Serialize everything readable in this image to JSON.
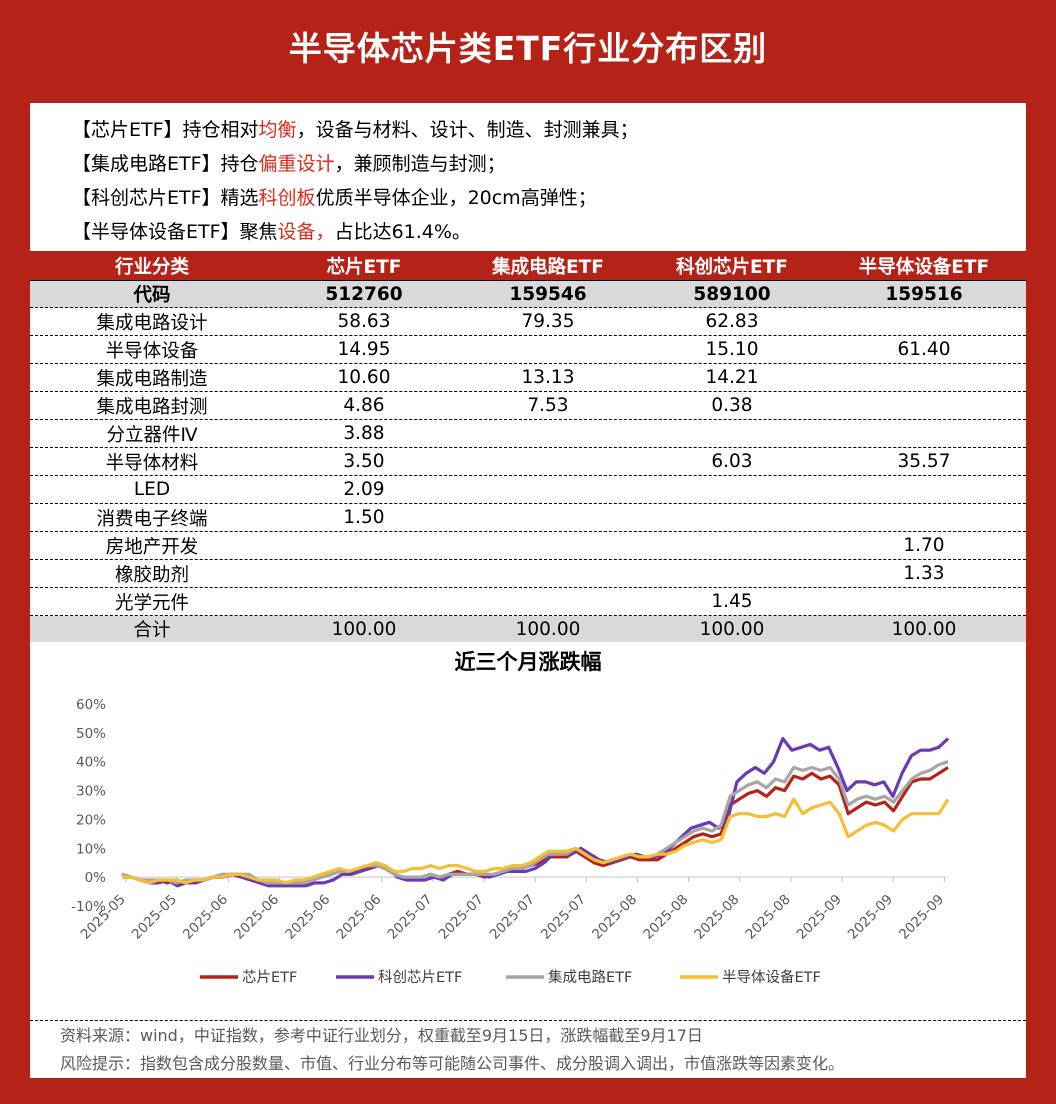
{
  "title": "半导体芯片类ETF行业分布区别",
  "intro": [
    {
      "a": "【芯片ETF】持仓相对",
      "hl": "均衡",
      "b": "，设备与材料、设计、制造、封测兼具；"
    },
    {
      "a": "【集成电路ETF】持仓",
      "hl": "偏重设计",
      "b": "，兼顾制造与封测；"
    },
    {
      "a": "【科创芯片ETF】精选",
      "hl": "科创板",
      "b": "优质半导体企业，20cm高弹性；"
    },
    {
      "a": "【半导体设备ETF】聚焦",
      "hl": "设备，",
      "b": "占比达61.4%。"
    }
  ],
  "table": {
    "headers": [
      "行业分类",
      "芯片ETF",
      "集成电路ETF",
      "科创芯片ETF",
      "半导体设备ETF"
    ],
    "code_row": [
      "代码",
      "512760",
      "159546",
      "589100",
      "159516"
    ],
    "rows": [
      [
        "集成电路设计",
        "58.63",
        "79.35",
        "62.83",
        ""
      ],
      [
        "半导体设备",
        "14.95",
        "",
        "15.10",
        "61.40"
      ],
      [
        "集成电路制造",
        "10.60",
        "13.13",
        "14.21",
        ""
      ],
      [
        "集成电路封测",
        "4.86",
        "7.53",
        "0.38",
        ""
      ],
      [
        "分立器件Ⅳ",
        "3.88",
        "",
        "",
        ""
      ],
      [
        "半导体材料",
        "3.50",
        "",
        "6.03",
        "35.57"
      ],
      [
        "LED",
        "2.09",
        "",
        "",
        ""
      ],
      [
        "消费电子终端",
        "1.50",
        "",
        "",
        ""
      ],
      [
        "房地产开发",
        "",
        "",
        "",
        "1.70"
      ],
      [
        "橡胶助剂",
        "",
        "",
        "",
        "1.33"
      ],
      [
        "光学元件",
        "",
        "",
        "1.45",
        ""
      ]
    ],
    "total_row": [
      "合计",
      "100.00",
      "100.00",
      "100.00",
      "100.00"
    ]
  },
  "footer": {
    "source": "资料来源：wind，中证指数，参考中证行业划分，权重截至9月15日，涨跌幅截至9月17日",
    "risk": "风险提示：指数包含成分股数量、市值、行业分布等可能随公司事件、成分股调入调出，市值涨跌等因素变化。"
  },
  "colors": {
    "brand_red": "#b52318",
    "highlight": "#e02a1b"
  },
  "chart_data": {
    "type": "line",
    "title": "近三个月涨跌幅",
    "ylim": [
      -10,
      60
    ],
    "yticks": [
      -10,
      0,
      10,
      20,
      30,
      40,
      50,
      60
    ],
    "y_format": "percent",
    "x_tick_labels": [
      "2025-05",
      "2025-05",
      "2025-06",
      "2025-06",
      "2025-06",
      "2025-06",
      "2025-07",
      "2025-07",
      "2025-07",
      "2025-07",
      "2025-08",
      "2025-08",
      "2025-08",
      "2025-08",
      "2025-09",
      "2025-09",
      "2025-09"
    ],
    "legend_position": "bottom",
    "series": [
      {
        "name": "芯片ETF",
        "color": "#b52318",
        "values": [
          0,
          0,
          -1,
          -2,
          -1,
          -2,
          -1,
          -2,
          -1,
          -1,
          0,
          0,
          1,
          1,
          0,
          -1,
          -2,
          -2,
          -2,
          -3,
          -2,
          -1,
          0,
          1,
          2,
          1,
          2,
          3,
          4,
          3,
          1,
          0,
          0,
          0,
          1,
          0,
          1,
          2,
          1,
          1,
          0,
          1,
          2,
          3,
          3,
          4,
          5,
          7,
          7,
          7,
          9,
          7,
          5,
          4,
          5,
          6,
          7,
          6,
          6,
          6,
          8,
          10,
          12,
          14,
          15,
          14,
          15,
          25,
          27,
          29,
          30,
          28,
          31,
          30,
          35,
          34,
          36,
          34,
          35,
          32,
          22,
          24,
          26,
          25,
          26,
          23,
          28,
          33,
          34,
          34,
          36,
          38
        ]
      },
      {
        "name": "科创芯片ETF",
        "color": "#6a3ab4",
        "values": [
          1,
          0,
          -1,
          -2,
          -2,
          -1,
          -3,
          -2,
          -2,
          -1,
          0,
          0,
          1,
          0,
          -1,
          -2,
          -3,
          -3,
          -3,
          -3,
          -3,
          -2,
          -2,
          -1,
          1,
          1,
          2,
          3,
          4,
          3,
          0,
          -1,
          -1,
          -1,
          0,
          -1,
          1,
          1,
          1,
          1,
          0,
          1,
          2,
          2,
          2,
          3,
          5,
          8,
          8,
          8,
          10,
          8,
          6,
          5,
          6,
          7,
          8,
          7,
          7,
          8,
          11,
          14,
          17,
          18,
          19,
          17,
          20,
          33,
          36,
          38,
          36,
          40,
          48,
          44,
          45,
          46,
          44,
          45,
          38,
          30,
          33,
          33,
          32,
          33,
          28,
          36,
          42,
          44,
          44,
          45,
          48
        ]
      },
      {
        "name": "集成电路ETF",
        "color": "#a6a6a6",
        "values": [
          1,
          0,
          -1,
          -1,
          -1,
          -1,
          -2,
          -1,
          -1,
          -1,
          0,
          1,
          1,
          1,
          1,
          -1,
          -2,
          -2,
          -2,
          -2,
          -2,
          -1,
          0,
          1,
          2,
          2,
          3,
          4,
          4,
          3,
          1,
          0,
          0,
          0,
          1,
          0,
          1,
          1,
          1,
          1,
          1,
          1,
          2,
          3,
          3,
          4,
          6,
          8,
          8,
          8,
          10,
          8,
          6,
          5,
          6,
          7,
          8,
          7,
          7,
          8,
          10,
          12,
          14,
          16,
          17,
          16,
          18,
          28,
          30,
          32,
          33,
          31,
          34,
          33,
          38,
          37,
          38,
          37,
          38,
          34,
          25,
          27,
          28,
          27,
          28,
          26,
          30,
          34,
          36,
          37,
          39,
          40
        ]
      },
      {
        "name": "半导体设备ETF",
        "color": "#f4bf35",
        "values": [
          0,
          0,
          -1,
          -2,
          -1,
          -1,
          -1,
          -2,
          -1,
          -1,
          0,
          0,
          1,
          1,
          0,
          -1,
          -1,
          -1,
          -2,
          -1,
          -1,
          0,
          1,
          2,
          3,
          2,
          3,
          4,
          5,
          4,
          2,
          2,
          3,
          3,
          4,
          3,
          4,
          4,
          3,
          2,
          2,
          3,
          3,
          4,
          4,
          5,
          7,
          9,
          9,
          9,
          10,
          8,
          6,
          5,
          6,
          7,
          8,
          7,
          7,
          8,
          8,
          9,
          11,
          12,
          13,
          12,
          13,
          21,
          22,
          22,
          21,
          21,
          22,
          21,
          27,
          22,
          24,
          25,
          26,
          22,
          14,
          16,
          18,
          19,
          18,
          16,
          20,
          22,
          22,
          22,
          22,
          27
        ]
      }
    ]
  }
}
